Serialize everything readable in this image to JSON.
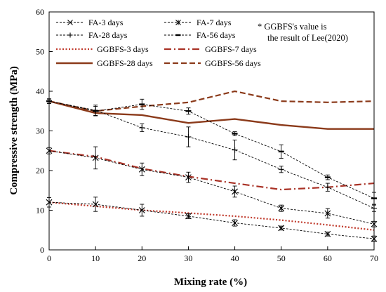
{
  "chart_data": {
    "type": "line",
    "xlabel": "Mixing rate (%)",
    "ylabel": "Compressive strength (MPa)",
    "xlim": [
      0,
      70
    ],
    "ylim": [
      0,
      60
    ],
    "x_ticks": [
      "0",
      "10",
      "20",
      "30",
      "40",
      "50",
      "60",
      "70"
    ],
    "y_ticks": [
      "0",
      "10",
      "20",
      "30",
      "40",
      "50",
      "60"
    ],
    "grid": false,
    "legend_position": "top-left",
    "note_lines": [
      "* GGBFS's value is",
      "the result of Lee(2020)"
    ],
    "x": [
      0,
      10,
      20,
      30,
      40,
      50,
      60,
      70
    ],
    "series": [
      {
        "name": "FA-3 days",
        "marker": "x",
        "style": "dashed-thin",
        "color": "#000000",
        "values": [
          12,
          11.5,
          10,
          8.5,
          6.8,
          5.5,
          4,
          2.8
        ],
        "errors": [
          1.2,
          1.8,
          1.5,
          0.6,
          0.8,
          0.5,
          0.5,
          0.7
        ]
      },
      {
        "name": "FA-7 days",
        "marker": "asterisk",
        "style": "dashed-thin",
        "color": "#000000",
        "values": [
          25,
          23.2,
          20.3,
          18.3,
          14.7,
          10.5,
          9.2,
          6.5
        ],
        "errors": [
          0.8,
          2.8,
          1.6,
          1.3,
          1.4,
          0.8,
          1.2,
          0.7
        ]
      },
      {
        "name": "FA-28 days",
        "marker": "plus",
        "style": "dashed-thin",
        "color": "#000000",
        "values": [
          37.5,
          35.2,
          30.8,
          28.5,
          25.2,
          20.3,
          15.8,
          10.5
        ],
        "errors": [
          0.6,
          1.3,
          1.0,
          2.5,
          2.5,
          0.8,
          1.0,
          0.8
        ]
      },
      {
        "name": "FA-56 days",
        "marker": "dash",
        "style": "dashed-thin",
        "color": "#000000",
        "values": [
          37.5,
          35.0,
          36.7,
          35.0,
          29.3,
          24.8,
          18.3,
          13.0
        ],
        "errors": [
          0.5,
          1.2,
          1.3,
          0.8,
          0.5,
          1.7,
          0.6,
          1.5
        ]
      },
      {
        "name": "GGBFS-3 days",
        "marker": "none",
        "style": "dotted",
        "color": "#c0392b",
        "values": [
          12,
          11.0,
          10.0,
          9.3,
          8.5,
          7.5,
          6.3,
          5.0
        ]
      },
      {
        "name": "GGBFS-7 days",
        "marker": "none",
        "style": "dashdot",
        "color": "#a93226",
        "values": [
          25,
          23.5,
          20.5,
          18.5,
          16.8,
          15.2,
          15.8,
          16.8
        ]
      },
      {
        "name": "GGBFS-28 days",
        "marker": "none",
        "style": "solid",
        "color": "#8b3a1a",
        "values": [
          37.5,
          34.5,
          34.0,
          32.0,
          33.0,
          31.5,
          30.5,
          30.5
        ]
      },
      {
        "name": "GGBFS-56 days",
        "marker": "none",
        "style": "dashed-thick",
        "color": "#8b3a1a",
        "values": [
          37.5,
          35.0,
          36.2,
          37.2,
          40.0,
          37.5,
          37.2,
          37.5
        ]
      }
    ]
  }
}
